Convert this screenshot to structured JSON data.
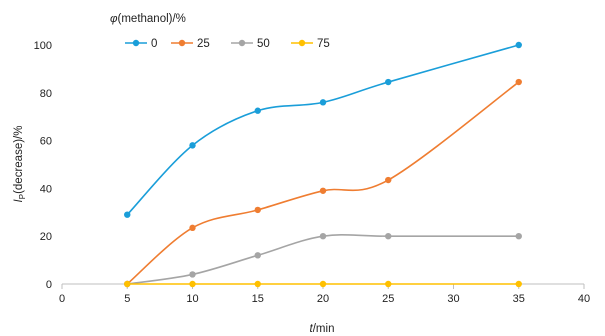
{
  "chart_data": {
    "type": "line",
    "legend": {
      "prefix": "φ",
      "title": "(methanol)/%",
      "placement": "top-left"
    },
    "series": [
      {
        "name": "0",
        "color": "#1a9ed9",
        "x": [
          5,
          10,
          15,
          20,
          25,
          35
        ],
        "y": [
          29,
          58,
          72.5,
          76,
          84.5,
          100
        ]
      },
      {
        "name": "25",
        "color": "#ef7d31",
        "x": [
          5,
          10,
          15,
          20,
          25,
          35
        ],
        "y": [
          0,
          23.5,
          31,
          39,
          43.5,
          84.5
        ]
      },
      {
        "name": "50",
        "color": "#a5a5a5",
        "x": [
          5,
          10,
          15,
          20,
          25,
          35
        ],
        "y": [
          0,
          4,
          12,
          20,
          20,
          20
        ]
      },
      {
        "name": "75",
        "color": "#ffc000",
        "x": [
          5,
          10,
          15,
          20,
          25,
          35
        ],
        "y": [
          0,
          0,
          0,
          0,
          0,
          0
        ]
      }
    ],
    "xlabel": {
      "var": "t",
      "rest": "/min"
    },
    "ylabel": {
      "var": "I",
      "sub": "P",
      "rest": "(decrease)/%"
    },
    "xlim": [
      0,
      40
    ],
    "ylim": [
      0,
      100
    ],
    "xticks": [
      "0",
      "5",
      "10",
      "15",
      "20",
      "25",
      "30",
      "35",
      "40"
    ],
    "yticks": [
      "0",
      "20",
      "40",
      "60",
      "80",
      "100"
    ],
    "grid": false,
    "smooth": true
  }
}
